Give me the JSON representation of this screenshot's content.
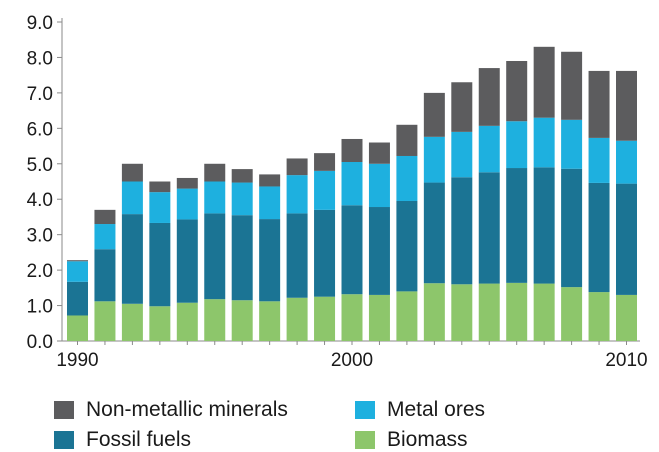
{
  "chart_data": {
    "type": "bar",
    "stacked": true,
    "x": [
      1990,
      1991,
      1992,
      1993,
      1994,
      1995,
      1996,
      1997,
      1998,
      1999,
      2000,
      2001,
      2002,
      2003,
      2004,
      2005,
      2006,
      2007,
      2008,
      2009,
      2010
    ],
    "x_tick_labels": [
      "1990",
      "2000",
      "2010"
    ],
    "x_tick_values": [
      1990,
      2000,
      2010
    ],
    "y_tick_labels": [
      "0.0",
      "1.0",
      "2.0",
      "3.0",
      "4.0",
      "5.0",
      "6.0",
      "7.0",
      "8.0",
      "9.0"
    ],
    "ylim": [
      0,
      9
    ],
    "grid": false,
    "legend_position": "bottom",
    "series": [
      {
        "name": "Biomass",
        "color": "#8dc66b",
        "values": [
          0.72,
          1.12,
          1.05,
          0.98,
          1.08,
          1.18,
          1.15,
          1.12,
          1.22,
          1.25,
          1.32,
          1.3,
          1.4,
          1.63,
          1.6,
          1.62,
          1.64,
          1.62,
          1.52,
          1.38,
          1.3
        ]
      },
      {
        "name": "Fossil fuels",
        "color": "#1b7494",
        "values": [
          0.95,
          1.47,
          2.53,
          2.35,
          2.35,
          2.42,
          2.4,
          2.32,
          2.38,
          2.45,
          2.51,
          2.48,
          2.55,
          2.84,
          3.02,
          3.14,
          3.24,
          3.28,
          3.34,
          3.08,
          3.14
        ]
      },
      {
        "name": "Metal ores",
        "color": "#1eb0df",
        "values": [
          0.58,
          0.71,
          0.92,
          0.87,
          0.87,
          0.9,
          0.92,
          0.92,
          1.08,
          1.1,
          1.22,
          1.22,
          1.27,
          1.29,
          1.28,
          1.31,
          1.32,
          1.4,
          1.38,
          1.27,
          1.21
        ]
      },
      {
        "name": "Non-metallic minerals",
        "color": "#5c5c5e",
        "values": [
          0.03,
          0.4,
          0.5,
          0.3,
          0.3,
          0.5,
          0.38,
          0.34,
          0.47,
          0.5,
          0.65,
          0.6,
          0.88,
          1.24,
          1.4,
          1.63,
          1.7,
          2.0,
          1.92,
          1.89,
          1.97
        ]
      }
    ]
  },
  "legend": {
    "items": [
      {
        "label": "Non-metallic minerals",
        "color": "#5c5c5e"
      },
      {
        "label": "Metal ores",
        "color": "#1eb0df"
      },
      {
        "label": "Fossil fuels",
        "color": "#1b7494"
      },
      {
        "label": "Biomass",
        "color": "#8dc66b"
      }
    ]
  }
}
